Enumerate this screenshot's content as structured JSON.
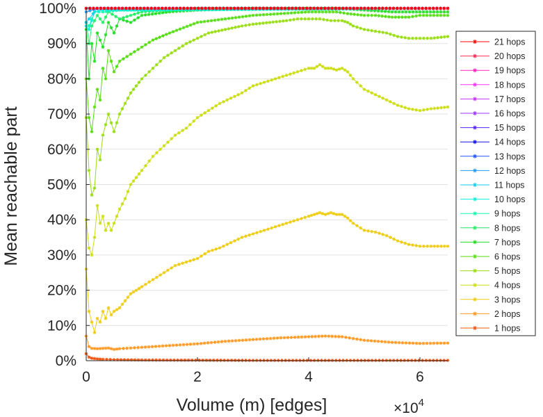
{
  "chart_data": {
    "type": "line",
    "xlabel": "Volume (m) [edges]",
    "ylabel": "Mean reachable part",
    "x_multiplier_label": "×10",
    "x_multiplier_exp": "4",
    "xlim": [
      0,
      65000
    ],
    "ylim": [
      0,
      100
    ],
    "x_ticks": [
      0,
      20000,
      40000,
      60000
    ],
    "x_tick_labels": [
      "0",
      "2",
      "4",
      "6"
    ],
    "y_ticks": [
      0,
      10,
      20,
      30,
      40,
      50,
      60,
      70,
      80,
      90,
      100
    ],
    "y_tick_labels": [
      "0%",
      "10%",
      "20%",
      "30%",
      "40%",
      "50%",
      "60%",
      "70%",
      "80%",
      "90%",
      "100%"
    ],
    "grid": "horizontal",
    "legend_position": "right",
    "marker": "asterisk",
    "series": [
      {
        "name": "21 hops",
        "color": "#ff0000",
        "x": [
          0,
          65000
        ],
        "y": [
          100,
          100
        ]
      },
      {
        "name": "20 hops",
        "color": "#ff2b55",
        "x": [
          0,
          65000
        ],
        "y": [
          100,
          100
        ]
      },
      {
        "name": "19 hops",
        "color": "#ff22bb",
        "x": [
          0,
          65000
        ],
        "y": [
          100,
          100
        ]
      },
      {
        "name": "18 hops",
        "color": "#ff33ff",
        "x": [
          0,
          65000
        ],
        "y": [
          100,
          100
        ]
      },
      {
        "name": "17 hops",
        "color": "#cc33ff",
        "x": [
          0,
          65000
        ],
        "y": [
          100,
          100
        ]
      },
      {
        "name": "16 hops",
        "color": "#9933ff",
        "x": [
          0,
          65000
        ],
        "y": [
          100,
          100
        ]
      },
      {
        "name": "15 hops",
        "color": "#5522ff",
        "x": [
          0,
          65000
        ],
        "y": [
          100,
          100
        ]
      },
      {
        "name": "14 hops",
        "color": "#1111ee",
        "x": [
          0,
          65000
        ],
        "y": [
          100,
          100
        ]
      },
      {
        "name": "13 hops",
        "color": "#2255ff",
        "x": [
          0,
          65000
        ],
        "y": [
          100,
          100
        ]
      },
      {
        "name": "12 hops",
        "color": "#2299ff",
        "x": [
          0,
          2000,
          65000
        ],
        "y": [
          99,
          100,
          100
        ]
      },
      {
        "name": "11 hops",
        "color": "#11ccee",
        "x": [
          0,
          500,
          2000,
          65000
        ],
        "y": [
          96,
          97,
          100,
          100
        ]
      },
      {
        "name": "10 hops",
        "color": "#11eedd",
        "x": [
          0,
          500,
          1500,
          3000,
          65000
        ],
        "y": [
          95,
          94,
          99,
          99.5,
          100
        ]
      },
      {
        "name": "9 hops",
        "color": "#11ffaa",
        "x": [
          0,
          500,
          1500,
          3000,
          6000,
          65000
        ],
        "y": [
          96,
          95,
          99,
          99,
          99.5,
          100
        ]
      },
      {
        "name": "8 hops",
        "color": "#22ee66",
        "x": [
          0,
          500,
          1000,
          2000,
          3000,
          4000,
          6000,
          10000,
          20000,
          65000
        ],
        "y": [
          96,
          90,
          95,
          98,
          96,
          99,
          97,
          99,
          100,
          100
        ]
      },
      {
        "name": "7 hops",
        "color": "#22dd22",
        "x": [
          0,
          500,
          1000,
          1500,
          2000,
          3000,
          4000,
          5000,
          6000,
          8000,
          10000,
          15000,
          20000,
          30000,
          45000,
          50000,
          55000,
          60000,
          65000
        ],
        "y": [
          94,
          80,
          90,
          85,
          93,
          89,
          96,
          93,
          97,
          96,
          98,
          99,
          99.5,
          100,
          100,
          99.5,
          99,
          99,
          99
        ]
      },
      {
        "name": "6 hops",
        "color": "#55dd11",
        "x": [
          0,
          500,
          1000,
          1500,
          2000,
          2500,
          3000,
          3500,
          4000,
          5000,
          6000,
          8000,
          10000,
          12000,
          15000,
          20000,
          25000,
          30000,
          35000,
          40000,
          45000,
          47000,
          50000,
          52000,
          55000,
          58000,
          60000,
          65000
        ],
        "y": [
          80,
          69,
          65,
          72,
          77,
          74,
          83,
          80,
          88,
          82,
          85,
          87,
          89,
          91,
          93,
          96,
          97,
          98,
          98.5,
          99,
          99,
          98.5,
          98,
          98,
          97.5,
          97.5,
          98,
          98
        ]
      },
      {
        "name": "5 hops",
        "color": "#99dd11",
        "x": [
          0,
          500,
          1000,
          1500,
          2000,
          2500,
          3000,
          4000,
          5000,
          6000,
          7000,
          8000,
          9000,
          10000,
          12000,
          14000,
          16000,
          18000,
          20000,
          22000,
          25000,
          28000,
          30000,
          33000,
          36000,
          38000,
          40000,
          42000,
          44000,
          46000,
          47000,
          48000,
          50000,
          52000,
          54000,
          56000,
          58000,
          60000,
          62000,
          65000
        ],
        "y": [
          69,
          54,
          47,
          49,
          60,
          57,
          64,
          70,
          65,
          70,
          73,
          76,
          78,
          80,
          83,
          86,
          88,
          90,
          91.5,
          93,
          94,
          95,
          95.5,
          96,
          96.5,
          97,
          97,
          97,
          96.5,
          96.5,
          96,
          95,
          94,
          93.5,
          93,
          92,
          91.5,
          91.5,
          91.5,
          92
        ]
      },
      {
        "name": "4 hops",
        "color": "#ccdd11",
        "x": [
          0,
          500,
          1000,
          1500,
          2000,
          2500,
          3000,
          3500,
          4000,
          4500,
          5000,
          6000,
          7000,
          8000,
          9000,
          10000,
          12000,
          14000,
          16000,
          18000,
          20000,
          22000,
          24000,
          26000,
          28000,
          30000,
          32000,
          34000,
          36000,
          38000,
          40000,
          41000,
          42000,
          43000,
          44000,
          45000,
          46000,
          47000,
          48000,
          50000,
          52000,
          54000,
          56000,
          58000,
          60000,
          62000,
          65000
        ],
        "y": [
          40,
          32,
          30,
          35,
          44,
          39,
          41,
          37,
          39,
          37,
          39,
          43,
          46,
          50,
          52,
          54,
          58,
          61,
          64,
          66,
          69,
          71,
          73,
          74.5,
          76,
          78,
          79,
          80,
          81,
          82,
          83,
          83,
          84,
          83,
          83,
          82.5,
          83,
          82,
          80,
          77,
          75.5,
          74,
          72.5,
          71.5,
          71,
          71.5,
          72
        ]
      },
      {
        "name": "3 hops",
        "color": "#eecc11",
        "x": [
          0,
          500,
          1000,
          1500,
          2000,
          2500,
          3000,
          3500,
          4000,
          4500,
          5000,
          6000,
          7000,
          8000,
          9000,
          10000,
          12000,
          14000,
          16000,
          18000,
          20000,
          22000,
          24000,
          26000,
          28000,
          30000,
          32000,
          34000,
          36000,
          38000,
          40000,
          41000,
          42000,
          43000,
          44000,
          45000,
          46000,
          47000,
          48000,
          50000,
          52000,
          54000,
          56000,
          58000,
          60000,
          62000,
          65000
        ],
        "y": [
          26,
          14,
          11,
          8,
          12,
          11,
          14,
          12,
          15,
          13,
          14,
          15,
          17,
          19,
          20,
          21,
          23,
          25,
          27,
          28,
          29,
          31,
          32,
          33.5,
          35,
          36,
          37,
          38,
          39,
          40,
          41,
          41.5,
          42,
          41.5,
          42,
          41.5,
          41.5,
          40.5,
          39,
          37,
          36.5,
          35.5,
          34,
          33,
          32.5,
          32.5,
          32.5
        ]
      },
      {
        "name": "2 hops",
        "color": "#ff9922",
        "x": [
          0,
          500,
          1000,
          2000,
          3000,
          4000,
          5000,
          6000,
          8000,
          10000,
          15000,
          20000,
          25000,
          30000,
          35000,
          40000,
          43000,
          46000,
          48000,
          50000,
          55000,
          60000,
          65000
        ],
        "y": [
          7,
          4,
          3.5,
          3.4,
          3.5,
          3.6,
          3.2,
          3.4,
          3.6,
          3.8,
          4.3,
          4.8,
          5.5,
          6,
          6.5,
          6.8,
          7,
          6.8,
          6.3,
          5.8,
          5.2,
          4.9,
          5
        ]
      },
      {
        "name": "1 hops",
        "color": "#ee5511",
        "x": [
          0,
          500,
          1000,
          2000,
          3000,
          5000,
          10000,
          30000,
          65000
        ],
        "y": [
          2,
          1,
          0.7,
          0.5,
          0.4,
          0.3,
          0.2,
          0.1,
          0.1
        ]
      }
    ]
  }
}
